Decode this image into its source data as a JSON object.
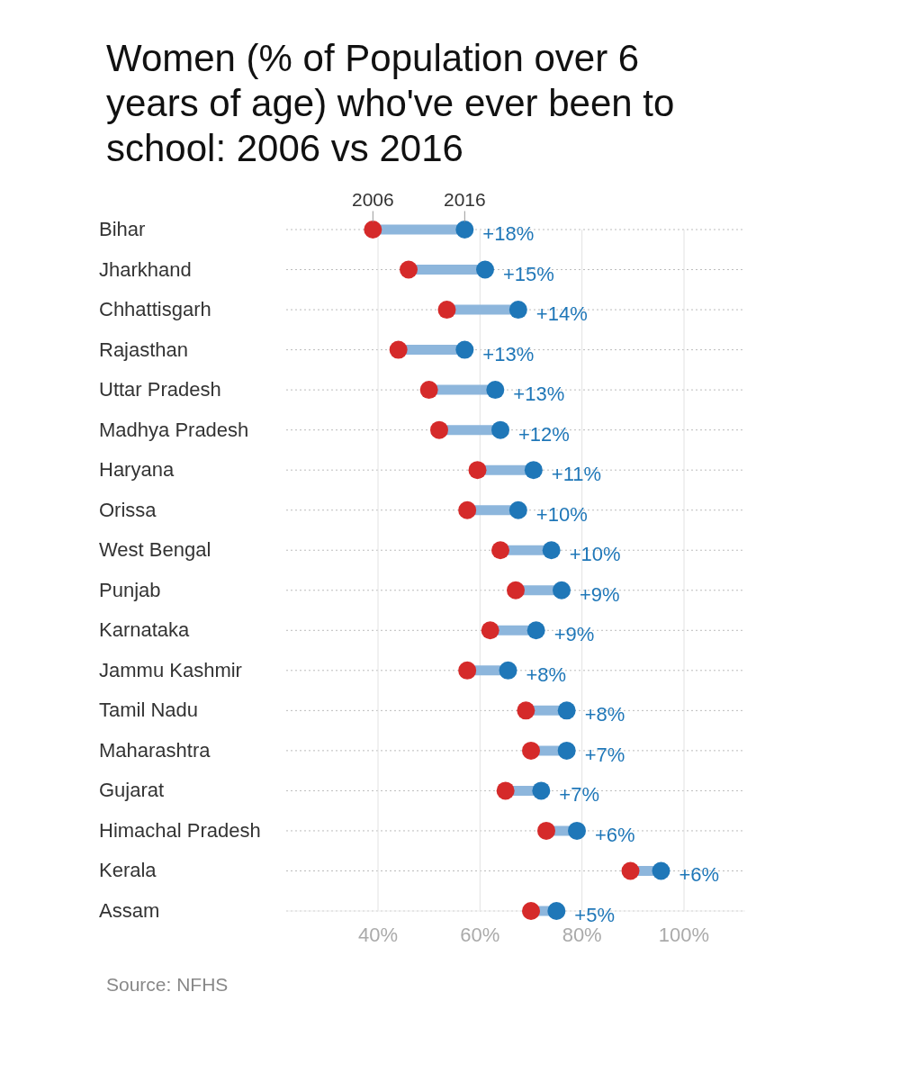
{
  "chart_data": {
    "type": "scatter",
    "title": "Women (% of Population over 6 years of age) who've ever been to school: 2006 vs 2016",
    "orientation": "horizontal",
    "marker": "circle",
    "grid": true,
    "categories": [
      "Bihar",
      "Jharkhand",
      "Chhattisgarh",
      "Rajasthan",
      "Uttar Pradesh",
      "Madhya Pradesh",
      "Haryana",
      "Orissa",
      "West Bengal",
      "Punjab",
      "Karnataka",
      "Jammu Kashmir",
      "Tamil Nadu",
      "Maharashtra",
      "Gujarat",
      "Himachal Pradesh",
      "Kerala",
      "Assam"
    ],
    "series": [
      {
        "name": "2006",
        "color": "#d52a2a",
        "values": [
          39,
          46,
          53.5,
          44,
          50,
          52,
          59.5,
          57.5,
          64,
          67,
          62,
          57.5,
          69,
          70,
          65,
          73,
          89.5,
          70
        ]
      },
      {
        "name": "2016",
        "color": "#1f77b8",
        "values": [
          57,
          61,
          67.5,
          57,
          63,
          64,
          70.5,
          67.5,
          74,
          76,
          71,
          65.5,
          77,
          77,
          72,
          79,
          95.5,
          75
        ]
      }
    ],
    "xlim": [
      22,
      112
    ],
    "xticks": [
      {
        "value": 40,
        "label": "40%"
      },
      {
        "value": 60,
        "label": "60%"
      },
      {
        "value": 80,
        "label": "80%"
      },
      {
        "value": 100,
        "label": "100%"
      }
    ],
    "annotations": [
      {
        "text": "+18%",
        "x": 57,
        "y": "Bihar"
      },
      {
        "text": "+15%",
        "x": 61,
        "y": "Jharkhand"
      },
      {
        "text": "+14%",
        "x": 67.5,
        "y": "Chhattisgarh"
      },
      {
        "text": "+13%",
        "x": 57,
        "y": "Rajasthan"
      },
      {
        "text": "+13%",
        "x": 63,
        "y": "Uttar Pradesh"
      },
      {
        "text": "+12%",
        "x": 64,
        "y": "Madhya Pradesh"
      },
      {
        "text": "+11%",
        "x": 70.5,
        "y": "Haryana"
      },
      {
        "text": "+10%",
        "x": 67.5,
        "y": "Orissa"
      },
      {
        "text": "+10%",
        "x": 74,
        "y": "West Bengal"
      },
      {
        "text": "+9%",
        "x": 76,
        "y": "Punjab"
      },
      {
        "text": "+9%",
        "x": 71,
        "y": "Karnataka"
      },
      {
        "text": "+8%",
        "x": 65.5,
        "y": "Jammu Kashmir"
      },
      {
        "text": "+8%",
        "x": 77,
        "y": "Tamil Nadu"
      },
      {
        "text": "+7%",
        "x": 77,
        "y": "Maharashtra"
      },
      {
        "text": "+7%",
        "x": 72,
        "y": "Gujarat"
      },
      {
        "text": "+6%",
        "x": 79,
        "y": "Himachal Pradesh"
      },
      {
        "text": "+6%",
        "x": 95.5,
        "y": "Kerala"
      },
      {
        "text": "+5%",
        "x": 75,
        "y": "Assam"
      },
      "Source: NFHS"
    ]
  }
}
